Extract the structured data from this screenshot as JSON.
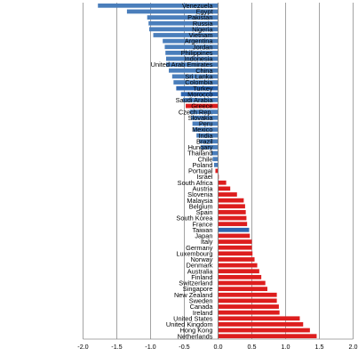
{
  "chart_data": {
    "type": "bar",
    "orientation": "horizontal",
    "categories": [
      "Venezuela",
      "Egypt",
      "Pakistan",
      "Russia",
      "Nigeria",
      "Vietnam",
      "Argentina",
      "Jordan",
      "Philippines",
      "Indonesia",
      "United Arab Emirates",
      "China",
      "Sri Lanka",
      "Colombia",
      "Turkey",
      "Morocco",
      "Saudi Arabia",
      "Greece",
      "Czech Rep.",
      "Slovakia",
      "Peru",
      "Mexico",
      "India",
      "Brazil",
      "Hungary",
      "Thailand",
      "Chile",
      "Poland",
      "Portugal",
      "Israel",
      "South Africa",
      "Austria",
      "Slovenia",
      "Malaysia",
      "Belgium",
      "Spain",
      "South Korea",
      "France",
      "Taiwan",
      "Japan",
      "Italy",
      "Germany",
      "Luxembourg",
      "Norway",
      "Denmark",
      "Australia",
      "Finland",
      "Switzerland",
      "Singapore",
      "New Zealand",
      "Sweden",
      "Canada",
      "Ireland",
      "United States",
      "United Kingdom",
      "Hong Kong",
      "Netherlands"
    ],
    "values": [
      -1.78,
      -1.35,
      -1.05,
      -1.03,
      -1.02,
      -0.96,
      -0.82,
      -0.79,
      -0.78,
      -0.77,
      -0.77,
      -0.73,
      -0.68,
      -0.66,
      -0.62,
      -0.55,
      -0.52,
      -0.48,
      -0.42,
      -0.4,
      -0.38,
      -0.37,
      -0.32,
      -0.28,
      -0.26,
      -0.1,
      -0.08,
      -0.06,
      -0.04,
      0.01,
      0.12,
      0.18,
      0.28,
      0.38,
      0.4,
      0.41,
      0.42,
      0.43,
      0.46,
      0.47,
      0.5,
      0.5,
      0.51,
      0.54,
      0.58,
      0.61,
      0.64,
      0.7,
      0.73,
      0.87,
      0.87,
      0.9,
      0.91,
      1.21,
      1.26,
      1.36,
      1.46
    ],
    "highlight": [
      "Greece",
      "Portugal"
    ],
    "colors": {
      "negative": "#4a7ebb",
      "positive": "#dd1e1e",
      "emphasis_negative": "#2e66b0"
    },
    "xlim": [
      -2.0,
      2.0
    ],
    "ticks": [
      "-2.0",
      "-1.5",
      "-1.0",
      "-0.5",
      "0.0",
      "0.5",
      "1.0",
      "1.5",
      "2.0"
    ],
    "tick_values": [
      -2.0,
      -1.5,
      -1.0,
      -0.5,
      0.0,
      0.5,
      1.0,
      1.5,
      2.0
    ],
    "grid": true,
    "title": "",
    "xlabel": "",
    "ylabel": ""
  }
}
